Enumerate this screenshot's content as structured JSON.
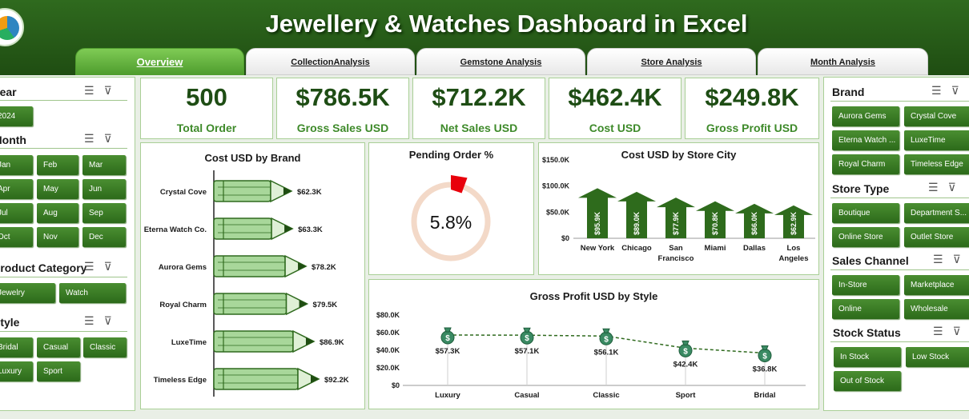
{
  "title": "Jewellery & Watches Dashboard in Excel",
  "tabs": [
    "Overview",
    "CollectionAnalysis",
    "Gemstone Analysis",
    "Store Analysis",
    "Month Analysis"
  ],
  "colors": {
    "dark_green": "#1f4d12",
    "button_green": "#3b7d25",
    "light_green_fill": "#a8d79a",
    "gauge_red": "#e8000b",
    "gauge_bg": "#f3d9c8"
  },
  "left_slicers": {
    "year": {
      "title": "Year",
      "items": [
        "2024"
      ]
    },
    "month": {
      "title": "Month",
      "items": [
        "Jan",
        "Feb",
        "Mar",
        "Apr",
        "May",
        "Jun",
        "Jul",
        "Aug",
        "Sep",
        "Oct",
        "Nov",
        "Dec"
      ]
    },
    "product_category": {
      "title": "Product Category",
      "items": [
        "Jewelry",
        "Watch"
      ]
    },
    "style": {
      "title": "Style",
      "items": [
        "Bridal",
        "Casual",
        "Classic",
        "Luxury",
        "Sport"
      ]
    }
  },
  "right_slicers": {
    "brand": {
      "title": "Brand",
      "items": [
        "Aurora Gems",
        "Crystal Cove",
        "Eterna Watch ...",
        "LuxeTime",
        "Royal Charm",
        "Timeless Edge"
      ]
    },
    "store_type": {
      "title": "Store Type",
      "items": [
        "Boutique",
        "Department S...",
        "Online Store",
        "Outlet Store"
      ]
    },
    "sales_channel": {
      "title": "Sales Channel",
      "items": [
        "In-Store",
        "Marketplace",
        "Online",
        "Wholesale"
      ]
    },
    "stock_status": {
      "title": "Stock Status",
      "items": [
        "In Stock",
        "Low Stock",
        "Out of Stock"
      ]
    }
  },
  "kpis": [
    {
      "value": "500",
      "label": "Total Order"
    },
    {
      "value": "$786.5K",
      "label": "Gross Sales USD"
    },
    {
      "value": "$712.2K",
      "label": "Net Sales USD"
    },
    {
      "value": "$462.4K",
      "label": "Cost USD"
    },
    {
      "value": "$249.8K",
      "label": "Gross Profit USD"
    }
  ],
  "chart_data": [
    {
      "type": "bar",
      "title": "Cost USD by Brand",
      "orientation": "horizontal",
      "categories": [
        "Crystal Cove",
        "Eterna Watch Co.",
        "Aurora Gems",
        "Royal Charm",
        "LuxeTime",
        "Timeless Edge"
      ],
      "values": [
        62.3,
        63.3,
        78.2,
        79.5,
        86.9,
        92.2
      ],
      "labels": [
        "$62.3K",
        "$63.3K",
        "$78.2K",
        "$79.5K",
        "$86.9K",
        "$92.2K"
      ],
      "unit": "K USD"
    },
    {
      "type": "pie",
      "title": "Pending Order %",
      "value": 5.8,
      "label": "5.8%"
    },
    {
      "type": "bar",
      "title": "Cost USD by Store City",
      "categories": [
        "New York",
        "Chicago",
        "San Francisco",
        "Miami",
        "Dallas",
        "Los Angeles"
      ],
      "category_lines": [
        [
          "New York"
        ],
        [
          "Chicago"
        ],
        [
          "San",
          "Francisco"
        ],
        [
          "Miami"
        ],
        [
          "Dallas"
        ],
        [
          "Los",
          "Angeles"
        ]
      ],
      "values": [
        95.9,
        89.0,
        77.9,
        70.8,
        66.0,
        62.9
      ],
      "labels": [
        "$95.9K",
        "$89.0K",
        "$77.9K",
        "$70.8K",
        "$66.0K",
        "$62.9K"
      ],
      "yticks": [
        "$0",
        "$50.0K",
        "$100.0K",
        "$150.0K"
      ],
      "ylim": [
        0,
        150
      ]
    },
    {
      "type": "line",
      "title": "Gross Profit USD by Style",
      "categories": [
        "Luxury",
        "Casual",
        "Classic",
        "Sport",
        "Bridal"
      ],
      "values": [
        57.3,
        57.1,
        56.1,
        42.4,
        36.8
      ],
      "labels": [
        "$57.3K",
        "$57.1K",
        "$56.1K",
        "$42.4K",
        "$36.8K"
      ],
      "yticks": [
        "$0",
        "$20.0K",
        "$40.0K",
        "$60.0K",
        "$80.0K"
      ],
      "ylim": [
        0,
        80
      ]
    }
  ]
}
